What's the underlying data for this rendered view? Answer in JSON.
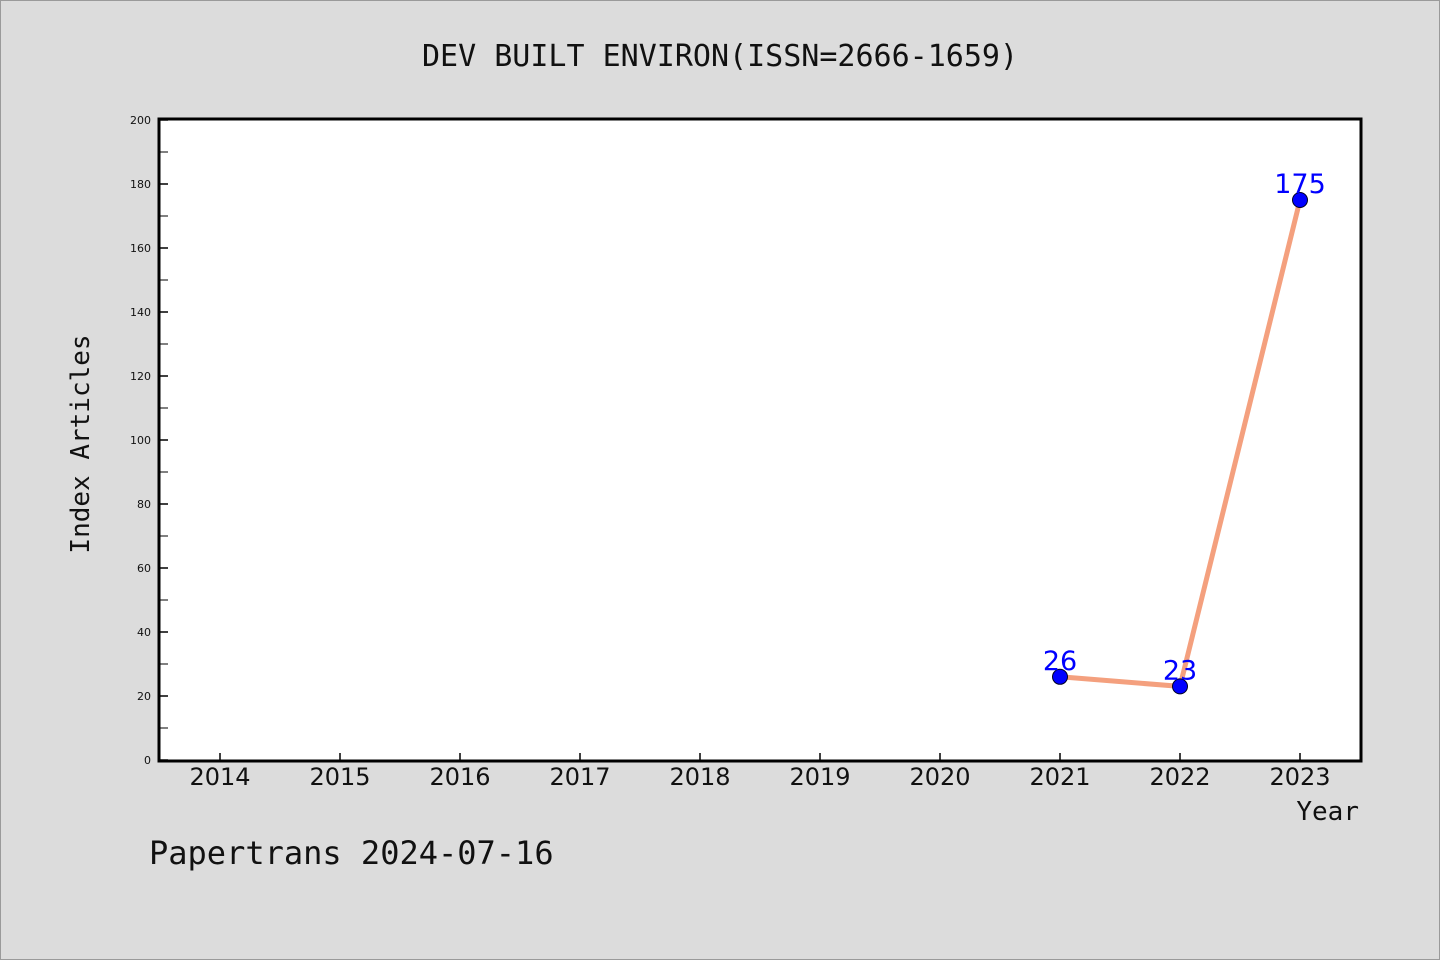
{
  "chart_data": {
    "type": "line",
    "title": "DEV BUILT ENVIRON(ISSN=2666-1659)",
    "xlabel": "Year",
    "ylabel": "Index Articles",
    "categories": [
      "2014",
      "2015",
      "2016",
      "2017",
      "2018",
      "2019",
      "2020",
      "2021",
      "2022",
      "2023"
    ],
    "y_ticks": [
      "0",
      "20",
      "40",
      "60",
      "80",
      "100",
      "120",
      "140",
      "160",
      "180",
      "200"
    ],
    "ylim": [
      0,
      200
    ],
    "series": [
      {
        "x": [
          "2021",
          "2022",
          "2023"
        ],
        "values": [
          26,
          23,
          175
        ],
        "labels": [
          "26",
          "23",
          "175"
        ]
      }
    ],
    "line_color": "#f4a07e",
    "marker_color": "#0000ff",
    "label_color": "#0000ff",
    "grid": false
  },
  "footer": "Papertrans 2024-07-16"
}
